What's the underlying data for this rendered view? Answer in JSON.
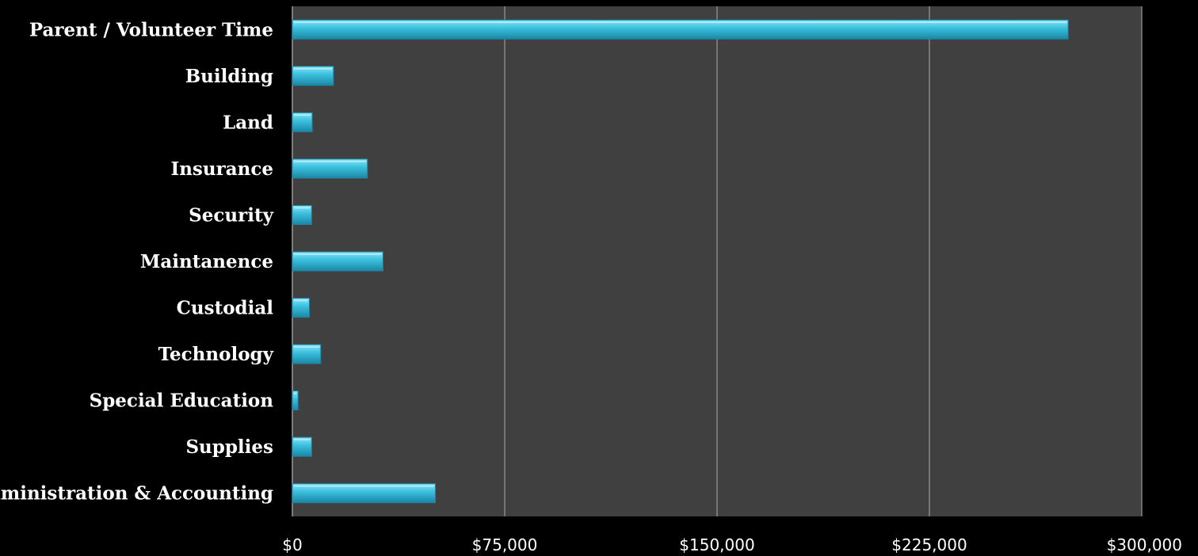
{
  "chart_data": {
    "type": "bar",
    "orientation": "horizontal",
    "title": "",
    "xlabel": "",
    "ylabel": "",
    "categories": [
      "Parent / Volunteer Time",
      "Building",
      "Land",
      "Insurance",
      "Security",
      "Maintanence",
      "Custodial",
      "Technology",
      "Special Education",
      "Supplies",
      "Administration & Accounting"
    ],
    "values": [
      274000,
      14500,
      7000,
      26500,
      6800,
      32000,
      6000,
      10000,
      2000,
      6800,
      50500
    ],
    "xlim": [
      0,
      300000
    ],
    "ticks": [
      0,
      75000,
      150000,
      225000,
      300000
    ],
    "tick_labels": [
      "$0",
      "$75,000",
      "$150,000",
      "$225,000",
      "$300,000"
    ],
    "grid": "vertical",
    "legend": "none",
    "colors": {
      "page_background": "#000000",
      "plot_background": "#404040",
      "gridline": "#9a9a9a",
      "bar_light": "#8fe4f6",
      "bar_mid": "#3cc2e0",
      "bar_dark": "#1a87a6",
      "text": "#ffffff"
    }
  }
}
